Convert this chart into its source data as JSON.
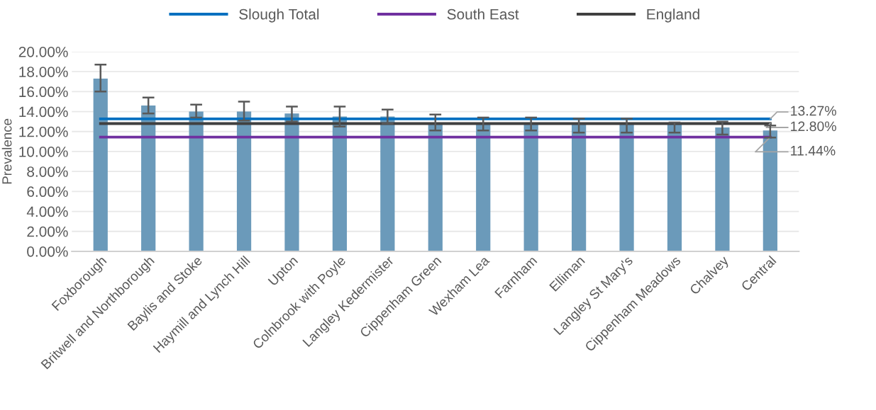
{
  "chart_data": {
    "type": "bar",
    "ylabel": "Prevalence",
    "categories": [
      "Foxborough",
      "Britwell and Northborough",
      "Baylis and Stoke",
      "Haymill and Lynch Hill",
      "Upton",
      "Colnbrook with Poyle",
      "Langley Kedermister",
      "Cippenham Green",
      "Wexham Lea",
      "Farnham",
      "Elliman",
      "Langley St Mary's",
      "Cippenham Meadows",
      "Chalvey",
      "Central"
    ],
    "series": [
      {
        "color": "#6b9aba",
        "values": [
          17.3,
          14.6,
          14.0,
          14.0,
          13.8,
          13.5,
          13.5,
          12.9,
          12.8,
          12.8,
          12.8,
          12.8,
          12.7,
          12.4,
          12.1
        ],
        "errors": [
          [
            16.0,
            18.7
          ],
          [
            13.8,
            15.4
          ],
          [
            13.4,
            14.7
          ],
          [
            13.1,
            15.0
          ],
          [
            13.0,
            14.5
          ],
          [
            12.5,
            14.5
          ],
          [
            12.8,
            14.2
          ],
          [
            12.1,
            13.7
          ],
          [
            12.1,
            13.4
          ],
          [
            12.1,
            13.4
          ],
          [
            11.9,
            13.3
          ],
          [
            11.9,
            13.3
          ],
          [
            11.9,
            12.9
          ],
          [
            11.7,
            13.0
          ],
          [
            11.4,
            12.6
          ]
        ]
      },
      {
        "type": "line",
        "name": "Slough Total",
        "color": "#0070c0",
        "values": [
          13.27,
          13.27,
          13.27,
          13.27,
          13.27,
          13.27,
          13.27,
          13.27,
          13.27,
          13.27,
          13.27,
          13.27,
          13.27,
          13.27,
          13.27
        ],
        "value_labels": [
          null,
          null,
          null,
          null,
          null,
          null,
          null,
          null,
          null,
          null,
          null,
          null,
          null,
          null,
          "13.27%"
        ]
      },
      {
        "type": "line",
        "name": "South East",
        "color": "#7030a0",
        "values": [
          11.44,
          11.44,
          11.44,
          11.44,
          11.44,
          11.44,
          11.44,
          11.44,
          11.44,
          11.44,
          11.44,
          11.44,
          11.44,
          11.44,
          11.44
        ],
        "value_labels": [
          null,
          null,
          null,
          null,
          null,
          null,
          null,
          null,
          null,
          null,
          null,
          null,
          null,
          null,
          "11.44%"
        ]
      },
      {
        "type": "line",
        "name": "England",
        "color": "#404040",
        "values": [
          12.8,
          12.8,
          12.8,
          12.8,
          12.8,
          12.8,
          12.8,
          12.8,
          12.8,
          12.8,
          12.8,
          12.8,
          12.8,
          12.8,
          12.8
        ],
        "value_labels": [
          null,
          null,
          null,
          null,
          null,
          null,
          null,
          null,
          null,
          null,
          null,
          null,
          null,
          null,
          "12.80%"
        ]
      }
    ],
    "ylim": [
      0,
      20
    ],
    "yticks": [
      {
        "value": 0,
        "label": "0.00%"
      },
      {
        "value": 2,
        "label": "2.00%"
      },
      {
        "value": 4,
        "label": "4.00%"
      },
      {
        "value": 6,
        "label": "6.00%"
      },
      {
        "value": 8,
        "label": "8.00%"
      },
      {
        "value": 10,
        "label": "10.00%"
      },
      {
        "value": 12,
        "label": "12.00%"
      },
      {
        "value": 14,
        "label": "14.00%"
      },
      {
        "value": 16,
        "label": "16.00%"
      },
      {
        "value": 18,
        "label": "18.00%"
      },
      {
        "value": 20,
        "label": "20.00%"
      }
    ],
    "grid": "y",
    "legend": "top",
    "marker": "none",
    "line_style": "solid"
  }
}
